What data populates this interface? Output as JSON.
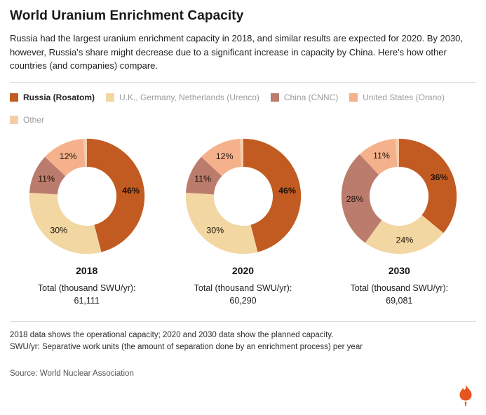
{
  "title": "World Uranium Enrichment Capacity",
  "intro": "Russia had the largest uranium enrichment capacity in 2018, and similar results are expected for 2020. By 2030, however, Russia's share might decrease due to a significant increase in capacity by China. Here's how other countries (and companies) compare.",
  "legend": [
    {
      "label": "Russia (Rosatom)",
      "color": "#c25b21"
    },
    {
      "label": "U.K., Germany, Netherlands (Urenco)",
      "color": "#f2d7a3"
    },
    {
      "label": "China (CNNC)",
      "color": "#bb7b6d"
    },
    {
      "label": "United States (Orano)",
      "color": "#f4b18c"
    },
    {
      "label": "Other",
      "color": "#f7cda8"
    }
  ],
  "chart_data": {
    "type": "pie",
    "variant": "donut",
    "legend_position": "top",
    "label_format": "percent",
    "series_labels": [
      "Russia (Rosatom)",
      "U.K., Germany, Netherlands (Urenco)",
      "China (CNNC)",
      "United States (Orano)",
      "Other"
    ],
    "colors": [
      "#c25b21",
      "#f2d7a3",
      "#bb7b6d",
      "#f4b18c",
      "#f7cda8"
    ],
    "charts": [
      {
        "year": "2018",
        "values": [
          46,
          30,
          11,
          12,
          1
        ],
        "shown_labels": [
          "46%",
          "30%",
          "11%",
          "12%"
        ],
        "total_label": "Total (thousand SWU/yr):",
        "total": "61,111"
      },
      {
        "year": "2020",
        "values": [
          46,
          30,
          11,
          12,
          1
        ],
        "shown_labels": [
          "46%",
          "30%",
          "11%",
          "12%"
        ],
        "total_label": "Total (thousand SWU/yr):",
        "total": "60,290"
      },
      {
        "year": "2030",
        "values": [
          36,
          24,
          28,
          11,
          1
        ],
        "shown_labels": [
          "36%",
          "24%",
          "28%",
          "11%"
        ],
        "total_label": "Total (thousand SWU/yr):",
        "total": "69,081"
      }
    ]
  },
  "footnotes": [
    "2018 data shows the operational capacity; 2020 and 2030 data show the planned capacity.",
    "SWU/yr: Separative work units (the amount of separation done by an enrichment process) per year"
  ],
  "source": "Source: World Nuclear Association",
  "logo": {
    "name": "rferl-torch",
    "color": "#e8541f"
  }
}
